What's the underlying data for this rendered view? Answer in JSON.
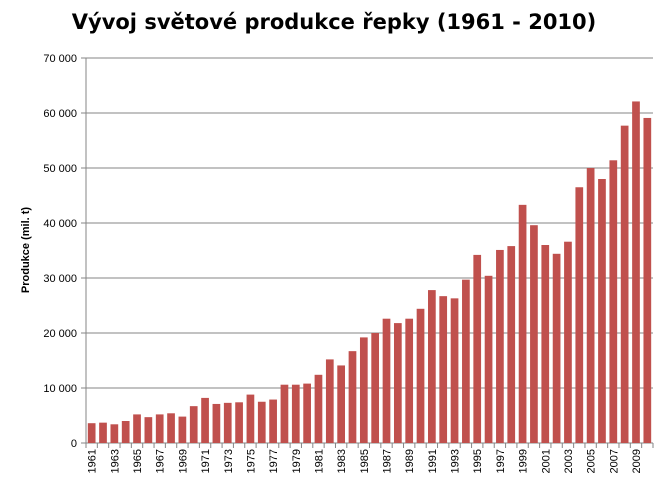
{
  "chart_data": {
    "type": "bar",
    "title": "Vývoj světové produkce řepky (1961 - 2010)",
    "xlabel": "",
    "ylabel": "Produkce (mil. t)",
    "ylim": [
      0,
      70000
    ],
    "y_ticks": [
      "0",
      "10 000",
      "20 000",
      "30 000",
      "40 000",
      "50 000",
      "60 000",
      "70 000"
    ],
    "y_tick_values": [
      0,
      10000,
      20000,
      30000,
      40000,
      50000,
      60000,
      70000
    ],
    "grid": true,
    "legend": "none",
    "colors": {
      "bar": "#C0504D",
      "grid": "#868686",
      "axis": "#868686"
    },
    "categories": [
      "1961",
      "1962",
      "1963",
      "1964",
      "1965",
      "1966",
      "1967",
      "1968",
      "1969",
      "1970",
      "1971",
      "1972",
      "1973",
      "1974",
      "1975",
      "1976",
      "1977",
      "1978",
      "1979",
      "1980",
      "1981",
      "1982",
      "1983",
      "1984",
      "1985",
      "1986",
      "1987",
      "1988",
      "1989",
      "1990",
      "1991",
      "1992",
      "1993",
      "1994",
      "1995",
      "1996",
      "1997",
      "1998",
      "1999",
      "2000",
      "2001",
      "2002",
      "2003",
      "2004",
      "2005",
      "2006",
      "2007",
      "2008",
      "2009",
      "2010"
    ],
    "x_tick_labels": [
      "1961",
      "1963",
      "1965",
      "1967",
      "1969",
      "1971",
      "1973",
      "1975",
      "1977",
      "1979",
      "1981",
      "1983",
      "1985",
      "1987",
      "1989",
      "1991",
      "1993",
      "1995",
      "1997",
      "1999",
      "2001",
      "2003",
      "2005",
      "2007",
      "2009"
    ],
    "values": [
      3600,
      3700,
      3400,
      4000,
      5200,
      4700,
      5200,
      5400,
      4800,
      6700,
      8200,
      7100,
      7300,
      7400,
      8800,
      7500,
      7900,
      10600,
      10600,
      10800,
      12400,
      15200,
      14100,
      16700,
      19200,
      20000,
      22600,
      21800,
      22600,
      24400,
      27800,
      26700,
      26300,
      29700,
      34200,
      30400,
      35100,
      35800,
      43300,
      39600,
      36000,
      34400,
      36600,
      46500,
      50000,
      48000,
      51400,
      57700,
      62100,
      59100
    ]
  }
}
